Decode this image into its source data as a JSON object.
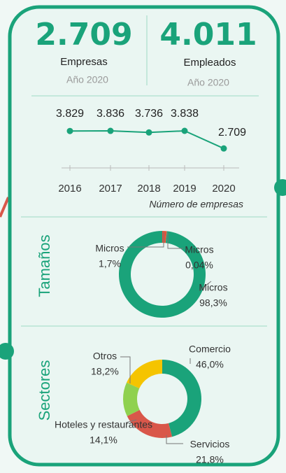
{
  "kpis": [
    {
      "value": "2.709",
      "label": "Empresas",
      "note": "Año 2020"
    },
    {
      "value": "4.011",
      "label": "Empleados",
      "note": "Año 2020"
    }
  ],
  "chart_data": [
    {
      "type": "line",
      "categories": [
        "2016",
        "2017",
        "2018",
        "2019",
        "2020"
      ],
      "values": [
        3829,
        3836,
        3736,
        3838,
        2709
      ],
      "value_labels": [
        "3.829",
        "3.836",
        "3.736",
        "3.838",
        "2.709"
      ],
      "xlabel": "Número de empresas",
      "color": "#1aa37a"
    },
    {
      "type": "donut",
      "title": "Tamaños",
      "categories": [
        "Micros",
        "Micros",
        "Micros"
      ],
      "values": [
        1.7,
        0.04,
        98.3
      ],
      "value_labels": [
        "1,7%",
        "0,04%",
        "98,3%"
      ],
      "colors": [
        "#e0533c",
        "#f5c400",
        "#1aa37a"
      ]
    },
    {
      "type": "donut",
      "title": "Sectores",
      "categories": [
        "Comercio",
        "Servicios",
        "Hoteles y restaurantes",
        "Otros"
      ],
      "values": [
        46.0,
        21.8,
        14.1,
        18.2
      ],
      "value_labels": [
        "46,0%",
        "21,8%",
        "14,1%",
        "18,2%"
      ],
      "colors": [
        "#1aa37a",
        "#d9574a",
        "#8fd14f",
        "#f5c400"
      ]
    }
  ]
}
